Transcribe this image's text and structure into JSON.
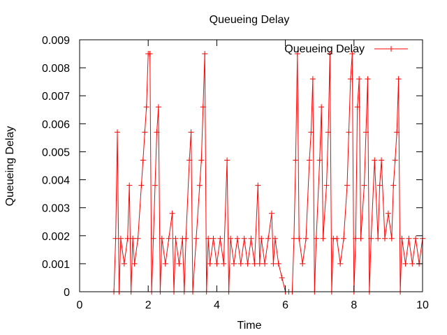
{
  "chart_data": {
    "type": "line",
    "title": "Queueing Delay",
    "xlabel": "Time",
    "ylabel": "Queueing Delay",
    "xlim": [
      0,
      10
    ],
    "ylim": [
      0,
      0.009
    ],
    "x_ticks": [
      0,
      2,
      4,
      6,
      8,
      10
    ],
    "x_tick_labels": [
      "0",
      "2",
      "4",
      "6",
      "8",
      "10"
    ],
    "y_ticks": [
      0,
      0.001,
      0.002,
      0.003,
      0.004,
      0.005,
      0.006,
      0.007,
      0.008,
      0.009
    ],
    "y_tick_labels": [
      "0",
      "0.001",
      "0.002",
      "0.003",
      "0.004",
      "0.005",
      "0.006",
      "0.007",
      "0.008",
      "0.009"
    ],
    "grid": false,
    "legend_position": "top-right",
    "series": [
      {
        "name": "Queueing Delay",
        "color": "#ff0000",
        "marker": "plus",
        "x": [
          1.0,
          1.05,
          1.1,
          1.15,
          1.2,
          1.3,
          1.4,
          1.45,
          1.5,
          1.55,
          1.6,
          1.7,
          1.8,
          1.85,
          1.9,
          1.95,
          2.0,
          2.05,
          2.1,
          2.15,
          2.2,
          2.25,
          2.3,
          2.35,
          2.4,
          2.5,
          2.6,
          2.7,
          2.75,
          2.8,
          2.9,
          3.0,
          3.05,
          3.1,
          3.2,
          3.25,
          3.3,
          3.4,
          3.5,
          3.55,
          3.6,
          3.65,
          3.7,
          3.75,
          3.8,
          3.9,
          4.0,
          4.1,
          4.2,
          4.3,
          4.35,
          4.4,
          4.5,
          4.6,
          4.7,
          4.8,
          4.9,
          5.0,
          5.1,
          5.2,
          5.25,
          5.3,
          5.4,
          5.5,
          5.6,
          5.65,
          5.7,
          5.8,
          5.9,
          6.0,
          6.1,
          6.2,
          6.25,
          6.3,
          6.35,
          6.4,
          6.5,
          6.6,
          6.7,
          6.75,
          6.8,
          6.85,
          6.9,
          7.0,
          7.05,
          7.1,
          7.2,
          7.25,
          7.3,
          7.35,
          7.4,
          7.5,
          7.6,
          7.7,
          7.8,
          7.85,
          7.9,
          7.95,
          8.0,
          8.05,
          8.1,
          8.15,
          8.2,
          8.3,
          8.35,
          8.4,
          8.45,
          8.5,
          8.6,
          8.7,
          8.75,
          8.8,
          8.9,
          9.0,
          9.1,
          9.15,
          9.2,
          9.25,
          9.3,
          9.35,
          9.4,
          9.5,
          9.6,
          9.7,
          9.8,
          9.9,
          10.0
        ],
        "y": [
          0.0,
          0.0019,
          0.0057,
          0.0,
          0.0019,
          0.001,
          0.0019,
          0.0038,
          0.0,
          0.0019,
          0.001,
          0.0019,
          0.0038,
          0.0047,
          0.0057,
          0.0066,
          0.0085,
          0.0085,
          0.0,
          0.0019,
          0.0038,
          0.0057,
          0.0066,
          0.0,
          0.0019,
          0.001,
          0.0019,
          0.0028,
          0.0,
          0.0019,
          0.001,
          0.0019,
          0.0,
          0.0019,
          0.0047,
          0.0057,
          0.0,
          0.0019,
          0.0038,
          0.0047,
          0.0066,
          0.0085,
          0.0,
          0.0019,
          0.001,
          0.0019,
          0.001,
          0.0019,
          0.001,
          0.0047,
          0.0,
          0.0019,
          0.001,
          0.0019,
          0.001,
          0.0019,
          0.001,
          0.0019,
          0.001,
          0.0038,
          0.001,
          0.0019,
          0.001,
          0.0019,
          0.0028,
          0.001,
          0.0019,
          0.001,
          0.0005,
          0.0,
          0.0,
          0.0,
          0.0019,
          0.0047,
          0.0085,
          0.0019,
          0.001,
          0.0019,
          0.0047,
          0.0057,
          0.0076,
          0.0,
          0.0019,
          0.0047,
          0.0066,
          0.0019,
          0.0038,
          0.0057,
          0.0085,
          0.0,
          0.0019,
          0.0019,
          0.001,
          0.0019,
          0.0038,
          0.0057,
          0.0076,
          0.0085,
          0.0,
          0.0019,
          0.0066,
          0.0076,
          0.0019,
          0.0038,
          0.0057,
          0.0076,
          0.0,
          0.0019,
          0.0047,
          0.0019,
          0.0038,
          0.0047,
          0.0019,
          0.0028,
          0.0019,
          0.0038,
          0.0047,
          0.0057,
          0.0076,
          0.0,
          0.0019,
          0.001,
          0.0019,
          0.001,
          0.0019,
          0.001,
          0.0019
        ]
      }
    ]
  }
}
